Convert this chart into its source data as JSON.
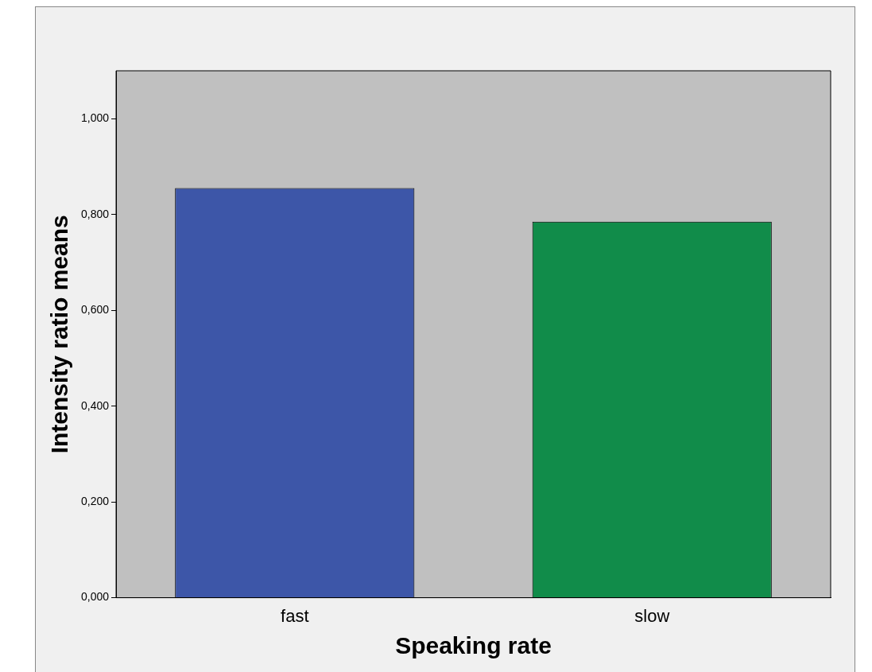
{
  "chart_data": {
    "type": "bar",
    "xlabel": "Speaking rate",
    "ylabel": "Intensity ratio means",
    "categories": [
      "fast",
      "slow"
    ],
    "values": [
      0.855,
      0.785
    ],
    "colors": [
      "#3d56a8",
      "#118c4a"
    ],
    "ylim": [
      0,
      1.1
    ],
    "yticks": [
      {
        "value": 0,
        "label": "0,000"
      },
      {
        "value": 0.2,
        "label": "0,200"
      },
      {
        "value": 0.4,
        "label": "0,400"
      },
      {
        "value": 0.6,
        "label": "0,600"
      },
      {
        "value": 0.8,
        "label": "0,800"
      },
      {
        "value": 1,
        "label": "1,000"
      }
    ],
    "grid": false
  }
}
